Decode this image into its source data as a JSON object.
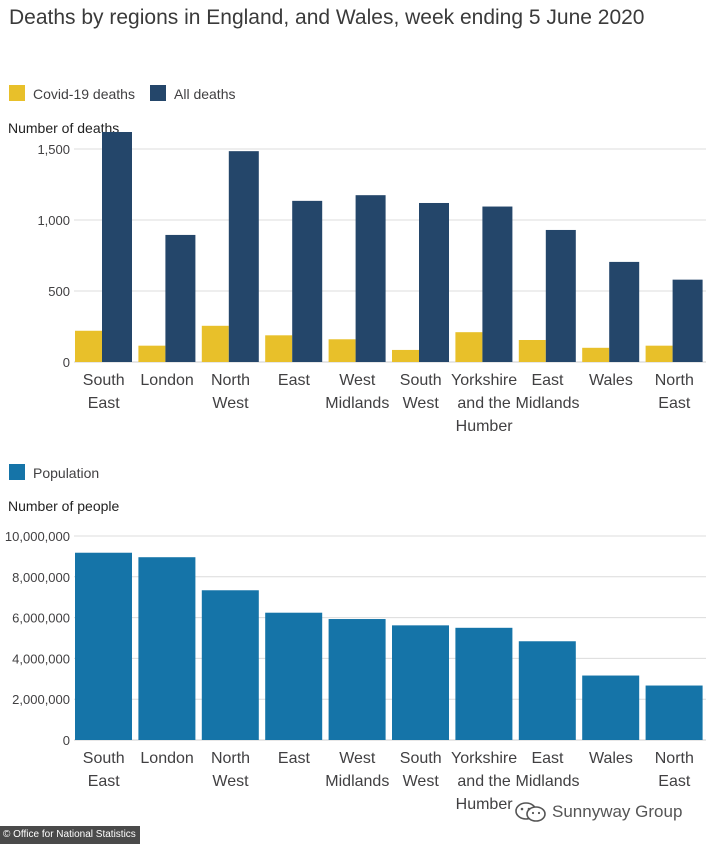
{
  "title": "Deaths by regions in England, and Wales, week ending 5 June 2020",
  "chart_data": [
    {
      "type": "bar",
      "categories": [
        [
          "South",
          "East"
        ],
        [
          "London"
        ],
        [
          "North",
          "West"
        ],
        [
          "East"
        ],
        [
          "West",
          "Midlands"
        ],
        [
          "South",
          "West"
        ],
        [
          "Yorkshire",
          "and the",
          "Humber"
        ],
        [
          "East",
          "Midlands"
        ],
        [
          "Wales"
        ],
        [
          "North",
          "East"
        ]
      ],
      "series": [
        {
          "name": "Covid-19 deaths",
          "color": "#e8c02a",
          "values": [
            220,
            115,
            255,
            188,
            160,
            85,
            210,
            155,
            100,
            115
          ]
        },
        {
          "name": "All deaths",
          "color": "#24466a",
          "values": [
            1620,
            895,
            1485,
            1135,
            1175,
            1120,
            1095,
            930,
            705,
            580
          ]
        }
      ],
      "ylabel": "Number of deaths",
      "ylim": [
        0,
        1620
      ],
      "yticks": [
        0,
        500,
        1000,
        1500
      ],
      "ytick_labels": [
        "0",
        "500",
        "1,000",
        "1,500"
      ]
    },
    {
      "type": "bar",
      "categories": [
        [
          "South",
          "East"
        ],
        [
          "London"
        ],
        [
          "North",
          "West"
        ],
        [
          "East"
        ],
        [
          "West",
          "Midlands"
        ],
        [
          "South",
          "West"
        ],
        [
          "Yorkshire",
          "and the",
          "Humber"
        ],
        [
          "East",
          "Midlands"
        ],
        [
          "Wales"
        ],
        [
          "North",
          "East"
        ]
      ],
      "series": [
        {
          "name": "Population",
          "color": "#1574a8",
          "values": [
            9180000,
            8960000,
            7340000,
            6240000,
            5930000,
            5620000,
            5500000,
            4840000,
            3160000,
            2670000
          ]
        }
      ],
      "ylabel": "Number of people",
      "ylim": [
        0,
        10000000
      ],
      "yticks": [
        0,
        2000000,
        4000000,
        6000000,
        8000000,
        10000000
      ],
      "ytick_labels": [
        "0",
        "2,000,000",
        "4,000,000",
        "6,000,000",
        "8,000,000",
        "10,000,000"
      ]
    }
  ],
  "credit": "© Office for National Statistics",
  "watermark": "Sunnyway Group"
}
